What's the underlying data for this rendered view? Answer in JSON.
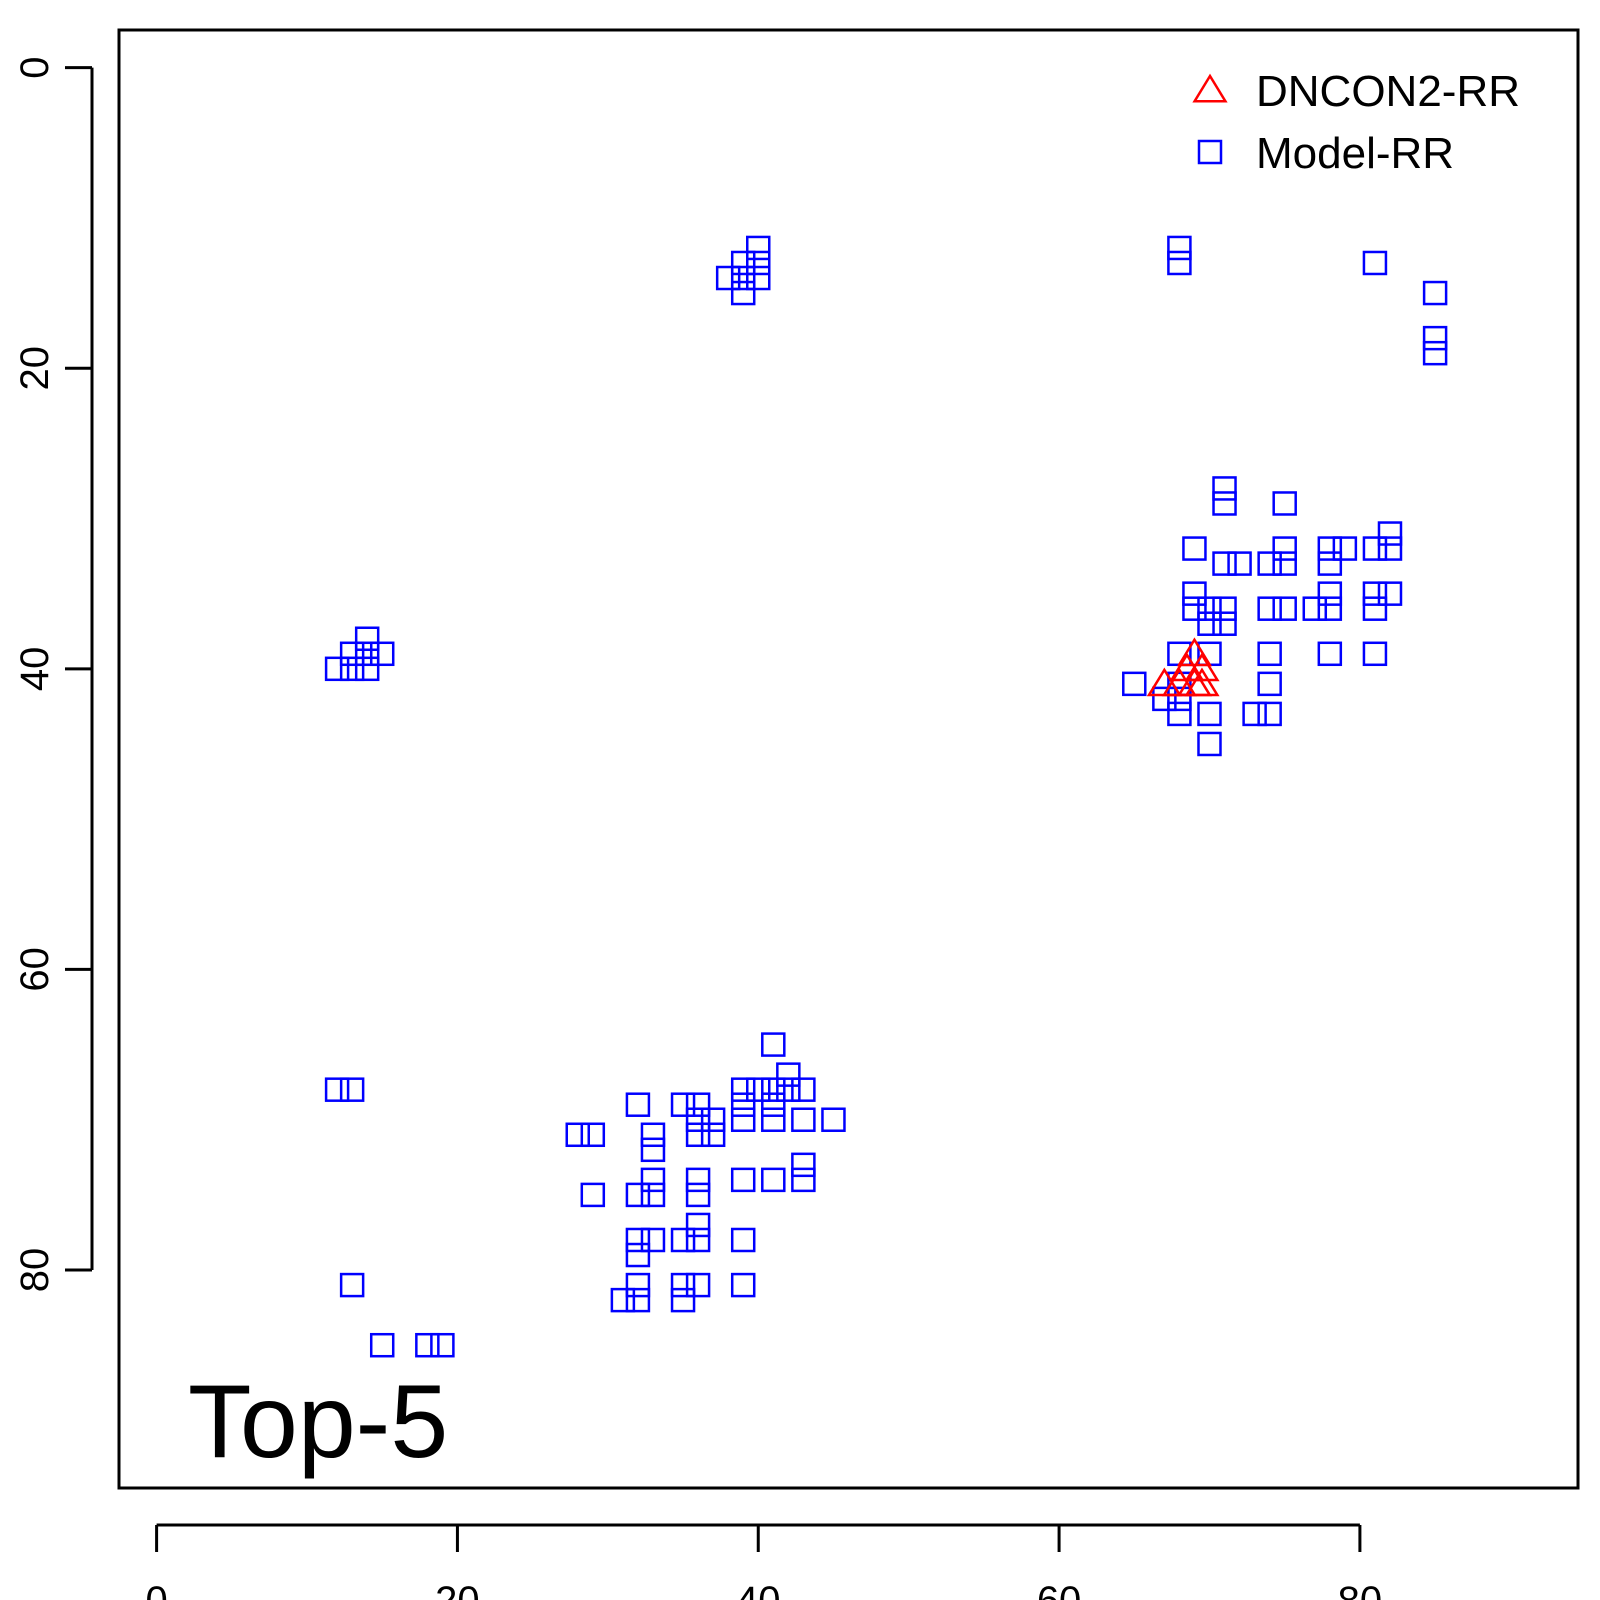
{
  "chart_data": {
    "type": "scatter",
    "title": "",
    "xlabel": "",
    "ylabel": "",
    "xlim": [
      -2.5,
      94.5
    ],
    "ylim": [
      -2.5,
      94.5
    ],
    "y_reversed": true,
    "x_ticks": [
      "0",
      "20",
      "40",
      "60",
      "80"
    ],
    "y_ticks": [
      "0",
      "20",
      "40",
      "60",
      "80"
    ],
    "annotation": "Top-5",
    "grid": false,
    "legend_position": "top-right",
    "series": [
      {
        "name": "DNCON2-RR",
        "marker": "triangle",
        "color": "#ff0000",
        "points": [
          [
            67,
            41
          ],
          [
            68,
            41
          ],
          [
            68.5,
            40
          ],
          [
            69,
            41
          ],
          [
            69,
            39
          ],
          [
            69.5,
            40
          ],
          [
            69.5,
            41
          ]
        ]
      },
      {
        "name": "Model-RR",
        "marker": "square",
        "color": "#0000ff",
        "points": [
          [
            38,
            14
          ],
          [
            39,
            13
          ],
          [
            39,
            14
          ],
          [
            39,
            15
          ],
          [
            40,
            12
          ],
          [
            40,
            13
          ],
          [
            40,
            14
          ],
          [
            68,
            12
          ],
          [
            68,
            13
          ],
          [
            81,
            13
          ],
          [
            85,
            15
          ],
          [
            85,
            18
          ],
          [
            85,
            19
          ],
          [
            12,
            40
          ],
          [
            13,
            39
          ],
          [
            13,
            40
          ],
          [
            14,
            38
          ],
          [
            14,
            39
          ],
          [
            14,
            40
          ],
          [
            15,
            39
          ],
          [
            71,
            28
          ],
          [
            71,
            29
          ],
          [
            75,
            29
          ],
          [
            69,
            32
          ],
          [
            75,
            32
          ],
          [
            78,
            32
          ],
          [
            79,
            32
          ],
          [
            81,
            32
          ],
          [
            82,
            31
          ],
          [
            82,
            32
          ],
          [
            71,
            33
          ],
          [
            72,
            33
          ],
          [
            74,
            33
          ],
          [
            75,
            33
          ],
          [
            78,
            33
          ],
          [
            69,
            35
          ],
          [
            78,
            35
          ],
          [
            81,
            35
          ],
          [
            82,
            35
          ],
          [
            69,
            36
          ],
          [
            70,
            36
          ],
          [
            71,
            36
          ],
          [
            74,
            36
          ],
          [
            75,
            36
          ],
          [
            77,
            36
          ],
          [
            78,
            36
          ],
          [
            81,
            36
          ],
          [
            70,
            37
          ],
          [
            71,
            37
          ],
          [
            68,
            39
          ],
          [
            70,
            39
          ],
          [
            74,
            39
          ],
          [
            78,
            39
          ],
          [
            81,
            39
          ],
          [
            65,
            41
          ],
          [
            68,
            41
          ],
          [
            74,
            41
          ],
          [
            67,
            42
          ],
          [
            68,
            42
          ],
          [
            68,
            43
          ],
          [
            70,
            43
          ],
          [
            73,
            43
          ],
          [
            74,
            43
          ],
          [
            70,
            45
          ],
          [
            12,
            68
          ],
          [
            13,
            68
          ],
          [
            13,
            81
          ],
          [
            15,
            85
          ],
          [
            18,
            85
          ],
          [
            19,
            85
          ],
          [
            41,
            65
          ],
          [
            42,
            67
          ],
          [
            39,
            68
          ],
          [
            40,
            68
          ],
          [
            41,
            68
          ],
          [
            42,
            68
          ],
          [
            43,
            68
          ],
          [
            32,
            69
          ],
          [
            35,
            69
          ],
          [
            36,
            69
          ],
          [
            39,
            69
          ],
          [
            41,
            69
          ],
          [
            36,
            70
          ],
          [
            37,
            70
          ],
          [
            39,
            70
          ],
          [
            41,
            70
          ],
          [
            43,
            70
          ],
          [
            45,
            70
          ],
          [
            28,
            71
          ],
          [
            29,
            71
          ],
          [
            33,
            71
          ],
          [
            36,
            71
          ],
          [
            37,
            71
          ],
          [
            33,
            72
          ],
          [
            43,
            73
          ],
          [
            33,
            74
          ],
          [
            36,
            74
          ],
          [
            39,
            74
          ],
          [
            41,
            74
          ],
          [
            43,
            74
          ],
          [
            29,
            75
          ],
          [
            32,
            75
          ],
          [
            33,
            75
          ],
          [
            36,
            75
          ],
          [
            36,
            77
          ],
          [
            32,
            78
          ],
          [
            33,
            78
          ],
          [
            35,
            78
          ],
          [
            36,
            78
          ],
          [
            39,
            78
          ],
          [
            32,
            79
          ],
          [
            32,
            81
          ],
          [
            35,
            81
          ],
          [
            36,
            81
          ],
          [
            39,
            81
          ],
          [
            31,
            82
          ],
          [
            32,
            82
          ],
          [
            35,
            82
          ]
        ]
      }
    ]
  }
}
